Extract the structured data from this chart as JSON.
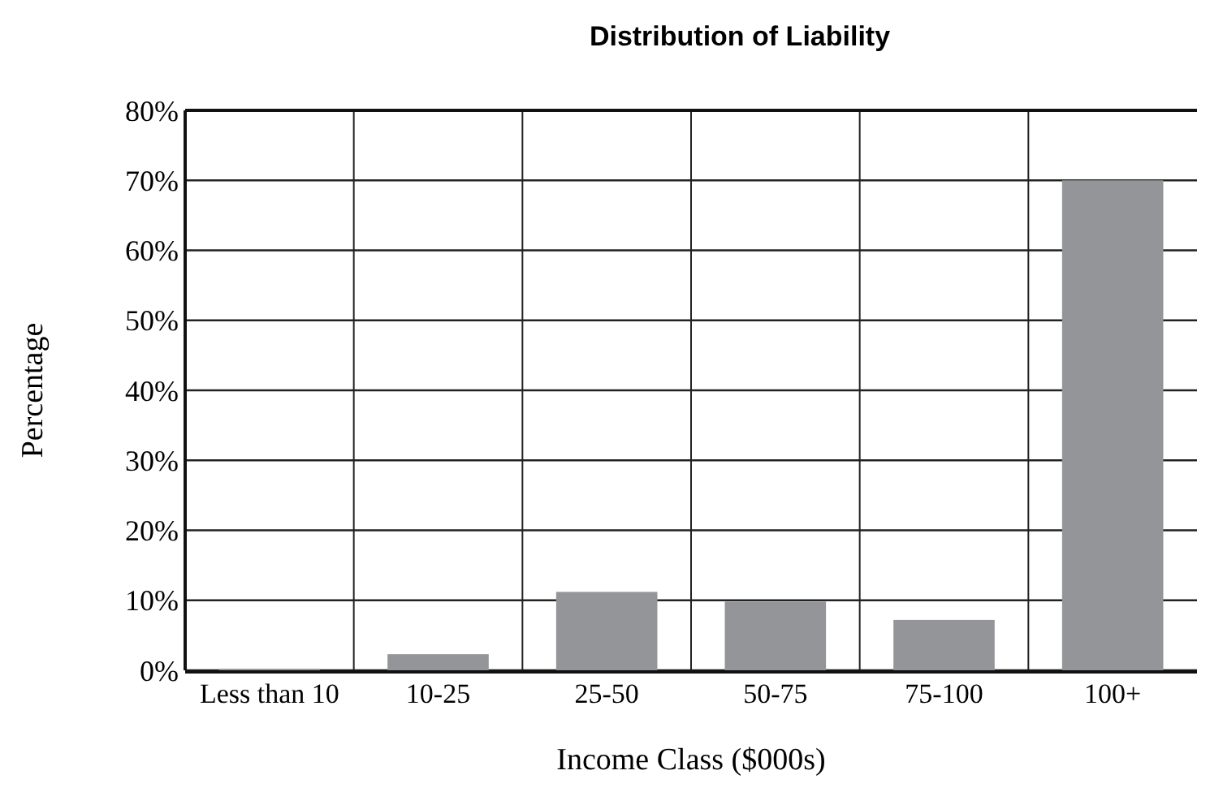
{
  "chart_data": {
    "type": "bar",
    "title": "Distribution of Liability",
    "xlabel": "Income Class ($000s)",
    "ylabel": "Percentage",
    "categories": [
      "Less than 10",
      "10-25",
      "25-50",
      "50-75",
      "75-100",
      "100+"
    ],
    "values": [
      0.2,
      2.3,
      11.2,
      9.8,
      7.2,
      70
    ],
    "color": "#939598",
    "ylim": [
      0,
      80
    ],
    "yticks": [
      {
        "value": 0,
        "label": "0%"
      },
      {
        "value": 10,
        "label": "10%"
      },
      {
        "value": 20,
        "label": "20%"
      },
      {
        "value": 30,
        "label": "30%"
      },
      {
        "value": 40,
        "label": "40%"
      },
      {
        "value": 50,
        "label": "50%"
      },
      {
        "value": 60,
        "label": "60%"
      },
      {
        "value": 70,
        "label": "70%"
      },
      {
        "value": 80,
        "label": "80%"
      }
    ],
    "grid": true
  }
}
